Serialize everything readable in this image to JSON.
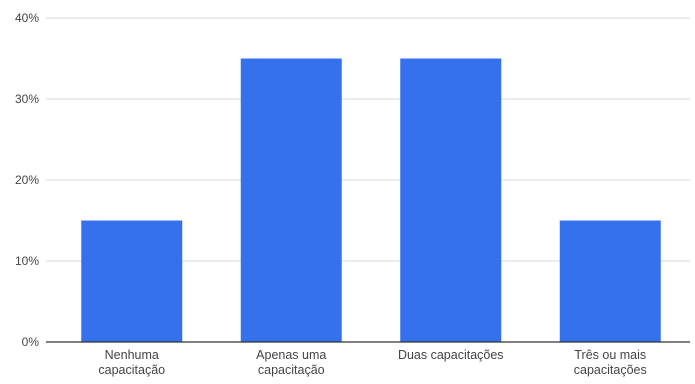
{
  "chart_data": {
    "type": "bar",
    "title": "",
    "xlabel": "",
    "ylabel": "",
    "categories": [
      [
        "Nenhuma",
        "capacitação"
      ],
      [
        "Apenas uma",
        "capacitação"
      ],
      [
        "Duas capacitações"
      ],
      [
        "Três ou mais",
        "capacitações"
      ]
    ],
    "values": [
      15,
      35,
      35,
      15
    ],
    "unit": "%",
    "ylim": [
      0,
      40
    ],
    "yticks": [
      "0%",
      "10%",
      "20%",
      "30%",
      "40%"
    ],
    "grid": true,
    "legend": "none",
    "bar_color": "#3571ec"
  }
}
